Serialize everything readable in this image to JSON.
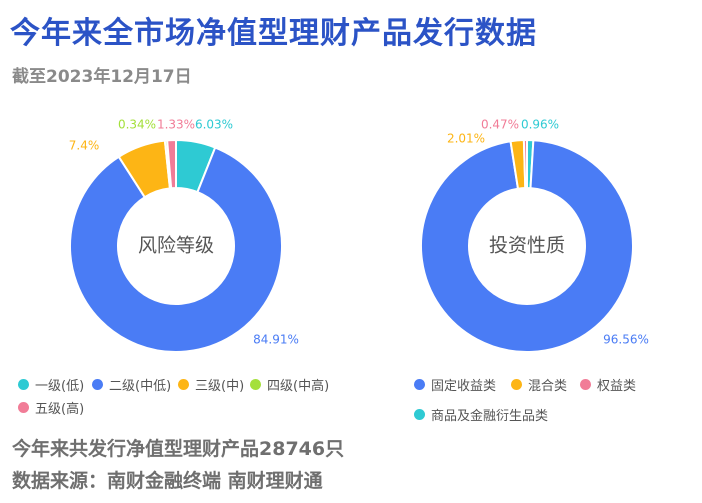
{
  "header": {
    "title": "今年来全市场净值型理财产品发行数据",
    "subtitle": "截至2023年12月17日"
  },
  "colors": {
    "title": "#2b53c6",
    "blue": "#4a7cf5",
    "cyan": "#2ecad3",
    "orange": "#fdb515",
    "green": "#a4e03b",
    "pink": "#f17c97"
  },
  "chart_data": [
    {
      "type": "pie",
      "variant": "donut",
      "center_label": "风险等级",
      "slices": [
        {
          "name": "一级(低)",
          "value": 6.03,
          "label": "6.03%",
          "color": "#2ecad3"
        },
        {
          "name": "二级(中低)",
          "value": 84.91,
          "label": "84.91%",
          "color": "#4a7cf5"
        },
        {
          "name": "三级(中)",
          "value": 7.4,
          "label": "7.4%",
          "color": "#fdb515"
        },
        {
          "name": "四级(中高)",
          "value": 0.34,
          "label": "0.34%",
          "color": "#a4e03b"
        },
        {
          "name": "五级(高)",
          "value": 1.33,
          "label": "1.33%",
          "color": "#f17c97"
        }
      ],
      "legend_placement": "bottom-left"
    },
    {
      "type": "pie",
      "variant": "donut",
      "center_label": "投资性质",
      "slices": [
        {
          "name": "商品及金融衍生品类",
          "value": 0.96,
          "label": "0.96%",
          "color": "#2ecad3"
        },
        {
          "name": "固定收益类",
          "value": 96.56,
          "label": "96.56%",
          "color": "#4a7cf5"
        },
        {
          "name": "混合类",
          "value": 2.01,
          "label": "2.01%",
          "color": "#fdb515"
        },
        {
          "name": "权益类",
          "value": 0.47,
          "label": "0.47%",
          "color": "#f17c97"
        }
      ],
      "legend_placement": "bottom-right"
    }
  ],
  "legend_left": [
    {
      "name": "一级(低)",
      "color": "#2ecad3"
    },
    {
      "name": "二级(中低)",
      "color": "#4a7cf5"
    },
    {
      "name": "三级(中)",
      "color": "#fdb515"
    },
    {
      "name": "四级(中高)",
      "color": "#a4e03b"
    },
    {
      "name": "五级(高)",
      "color": "#f17c97"
    }
  ],
  "legend_right": [
    {
      "name": "固定收益类",
      "color": "#4a7cf5"
    },
    {
      "name": "混合类",
      "color": "#fdb515"
    },
    {
      "name": "权益类",
      "color": "#f17c97"
    },
    {
      "name": "商品及金融衍生品类",
      "color": "#2ecad3"
    }
  ],
  "footer": {
    "total": "今年来共发行净值型理财产品28746只",
    "source": "数据来源：南财金融终端 南财理财通"
  }
}
